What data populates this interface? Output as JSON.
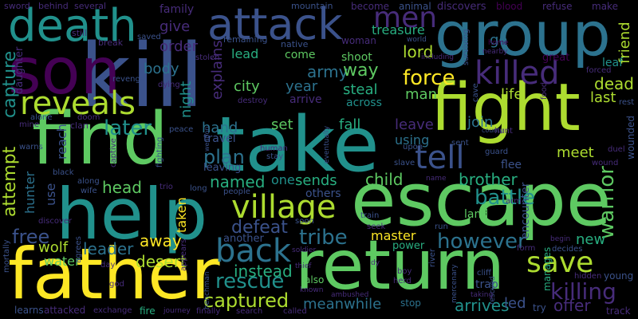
{
  "background": "#000000",
  "palette": {
    "purple": "#440154",
    "indigo": "#472c7a",
    "blue": "#3b528b",
    "steel": "#2c728e",
    "teal": "#21918c",
    "green": "#28ae80",
    "lime": "#5ec962",
    "yellowgreen": "#addc30",
    "yellow": "#fde725"
  },
  "words": {
    "kill": "kill",
    "find": "find",
    "take": "take",
    "escape": "escape",
    "help": "help",
    "father": "father",
    "return": "return",
    "fight": "fight",
    "son": "son",
    "group": "group",
    "death": "death",
    "attack": "attack",
    "reveals": "reveals",
    "village": "village",
    "killed": "killed",
    "men": "men",
    "tell": "tell",
    "back": "back",
    "save": "save",
    "battle": "battle",
    "rescue": "rescue",
    "later": "later",
    "captured": "captured",
    "force": "force",
    "tribe": "tribe",
    "however": "however",
    "killing": "killing",
    "free": "free",
    "plan": "plan",
    "defeat": "defeat",
    "named": "named",
    "instead": "instead",
    "warrior": "warrior",
    "attempt": "attempt",
    "capture": "capture",
    "leader": "leader",
    "desert": "desert",
    "away": "away",
    "head": "head",
    "child": "child",
    "brother": "brother",
    "army": "army",
    "way": "way",
    "lord": "lord",
    "dead": "dead",
    "life": "life",
    "last": "last",
    "give": "give",
    "order": "order",
    "body": "body",
    "night": "night",
    "city": "city",
    "year": "year",
    "hand": "hand",
    "set": "set",
    "fall": "fall",
    "leave": "leave",
    "join": "join",
    "meet": "meet",
    "sends": "sends",
    "hunter": "hunter",
    "wolf": "wolf",
    "water": "water",
    "master": "master",
    "meanwhile": "meanwhile",
    "arrives": "arrives",
    "offer": "offer",
    "new": "new",
    "led": "led",
    "lead": "lead",
    "come": "come",
    "shoot": "shoot",
    "steal": "steal",
    "man": "man",
    "treasure": "treasure",
    "go": "go",
    "using": "using",
    "across": "across",
    "others": "others",
    "taken": "taken",
    "one": "one",
    "land": "land",
    "use": "use",
    "flee": "flee",
    "friend": "friend",
    "leaf": "leaf",
    "woman": "woman",
    "discovers": "discovers",
    "blood": "blood",
    "refuse": "refuse",
    "family": "family",
    "become": "become",
    "animal": "animal",
    "mountain": "mountain",
    "sword": "sword",
    "behind": "behind",
    "several": "several",
    "make": "make",
    "still": "still",
    "break": "break",
    "saved": "saved",
    "remaining": "remaining",
    "native": "native",
    "world": "world",
    "including": "including",
    "explains": "explains",
    "stolen": "stolen",
    "daughter": "daughter",
    "revenge": "revenge",
    "dying": "dying",
    "destroy": "destroy",
    "arrive": "arrive",
    "great": "great",
    "forced": "forced",
    "nearby": "nearby",
    "home": "home",
    "surviving": "surviving",
    "cave": "cave",
    "food": "food",
    "rest": "rest",
    "alone": "alone",
    "doom": "doom",
    "mine": "mine",
    "clan": "clan",
    "peace": "peace",
    "weapon": "weapon",
    "warns": "warns",
    "reach": "reach",
    "travel": "travel",
    "human": "human",
    "stay": "stay",
    "eventually": "eventually",
    "upon": "upon",
    "sent": "sent",
    "county": "county",
    "hunt": "hunt",
    "guard": "guard",
    "duel": "duel",
    "wounded": "wounded",
    "wound": "wound",
    "black": "black",
    "fighting": "fighting",
    "captive": "captive",
    "leaving": "leaving",
    "slave": "slave",
    "name": "name",
    "along": "along",
    "wife": "wife",
    "trio": "trio",
    "long": "long",
    "people": "people",
    "arm": "arm",
    "encounter": "encounter",
    "discover": "discover",
    "soon": "soon",
    "train": "train",
    "seek": "seek",
    "run": "run",
    "another": "another",
    "power": "power",
    "begin": "begin",
    "decides": "decides",
    "form": "form",
    "mortally": "mortally",
    "agrees": "agrees",
    "day": "day",
    "appears": "appears",
    "soldier": "soldier",
    "river": "river",
    "manages": "manages",
    "hidden": "hidden",
    "young": "young",
    "god": "god",
    "henchman": "henchman",
    "thief": "thief",
    "dy": "dy",
    "boy": "boy",
    "herd": "herd",
    "mercenary": "mercenary",
    "cliff": "cliff",
    "rescued": "rescued",
    "trap": "trap",
    "also": "also",
    "learns": "learns",
    "attacked": "attacked",
    "exchange": "exchange",
    "fire": "fire",
    "journey": "journey",
    "finally": "finally",
    "search": "search",
    "called": "called",
    "known": "known",
    "ambushed": "ambushed",
    "stop": "stop",
    "taking": "taking",
    "try": "try",
    "track": "track"
  }
}
